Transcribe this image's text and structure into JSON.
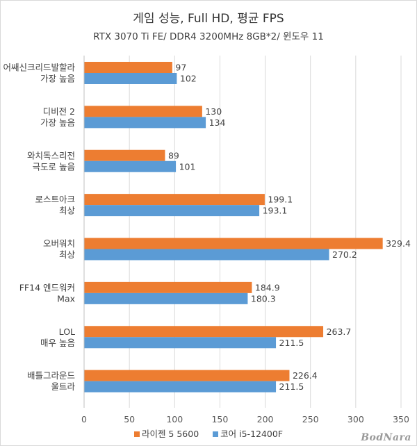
{
  "chart_data": {
    "type": "bar",
    "orientation": "horizontal",
    "title": "게임 성능, Full HD, 평균 FPS",
    "subtitle": "RTX 3070 Ti FE/ DDR4 3200MHz 8GB*2/ 윈도우 11",
    "categories": [
      [
        "어쌔신크리드발할라",
        "가장 높음"
      ],
      [
        "디비전 2",
        "가장 높음"
      ],
      [
        "와치독스리전",
        "극도로 높음"
      ],
      [
        "로스트아크",
        "최상"
      ],
      [
        "오버워치",
        "최상"
      ],
      [
        "FF14 엔드워커",
        "Max"
      ],
      [
        "LOL",
        "매우 높음"
      ],
      [
        "배틀그라운드",
        "울트라"
      ]
    ],
    "series": [
      {
        "name": "라이젠 5 5600",
        "color": "#ed7d31",
        "values": [
          97,
          130,
          89,
          199.1,
          329.4,
          184.9,
          263.7,
          226.4
        ]
      },
      {
        "name": "코어 i5-12400F",
        "color": "#5b9bd5",
        "values": [
          102,
          134,
          101,
          193.1,
          270.2,
          180.3,
          211.5,
          211.5
        ]
      }
    ],
    "value_labels": [
      [
        "97",
        "130",
        "89",
        "199.1",
        "329.4",
        "184.9",
        "263.7",
        "226.4"
      ],
      [
        "102",
        "134",
        "101",
        "193.1",
        "270.2",
        "180.3",
        "211.5",
        "211.5"
      ]
    ],
    "xlim": [
      0,
      350
    ],
    "xticks": [
      0,
      50,
      100,
      150,
      200,
      250,
      300,
      350
    ],
    "grid": true,
    "legend_position": "bottom"
  },
  "watermark": "BodNara"
}
